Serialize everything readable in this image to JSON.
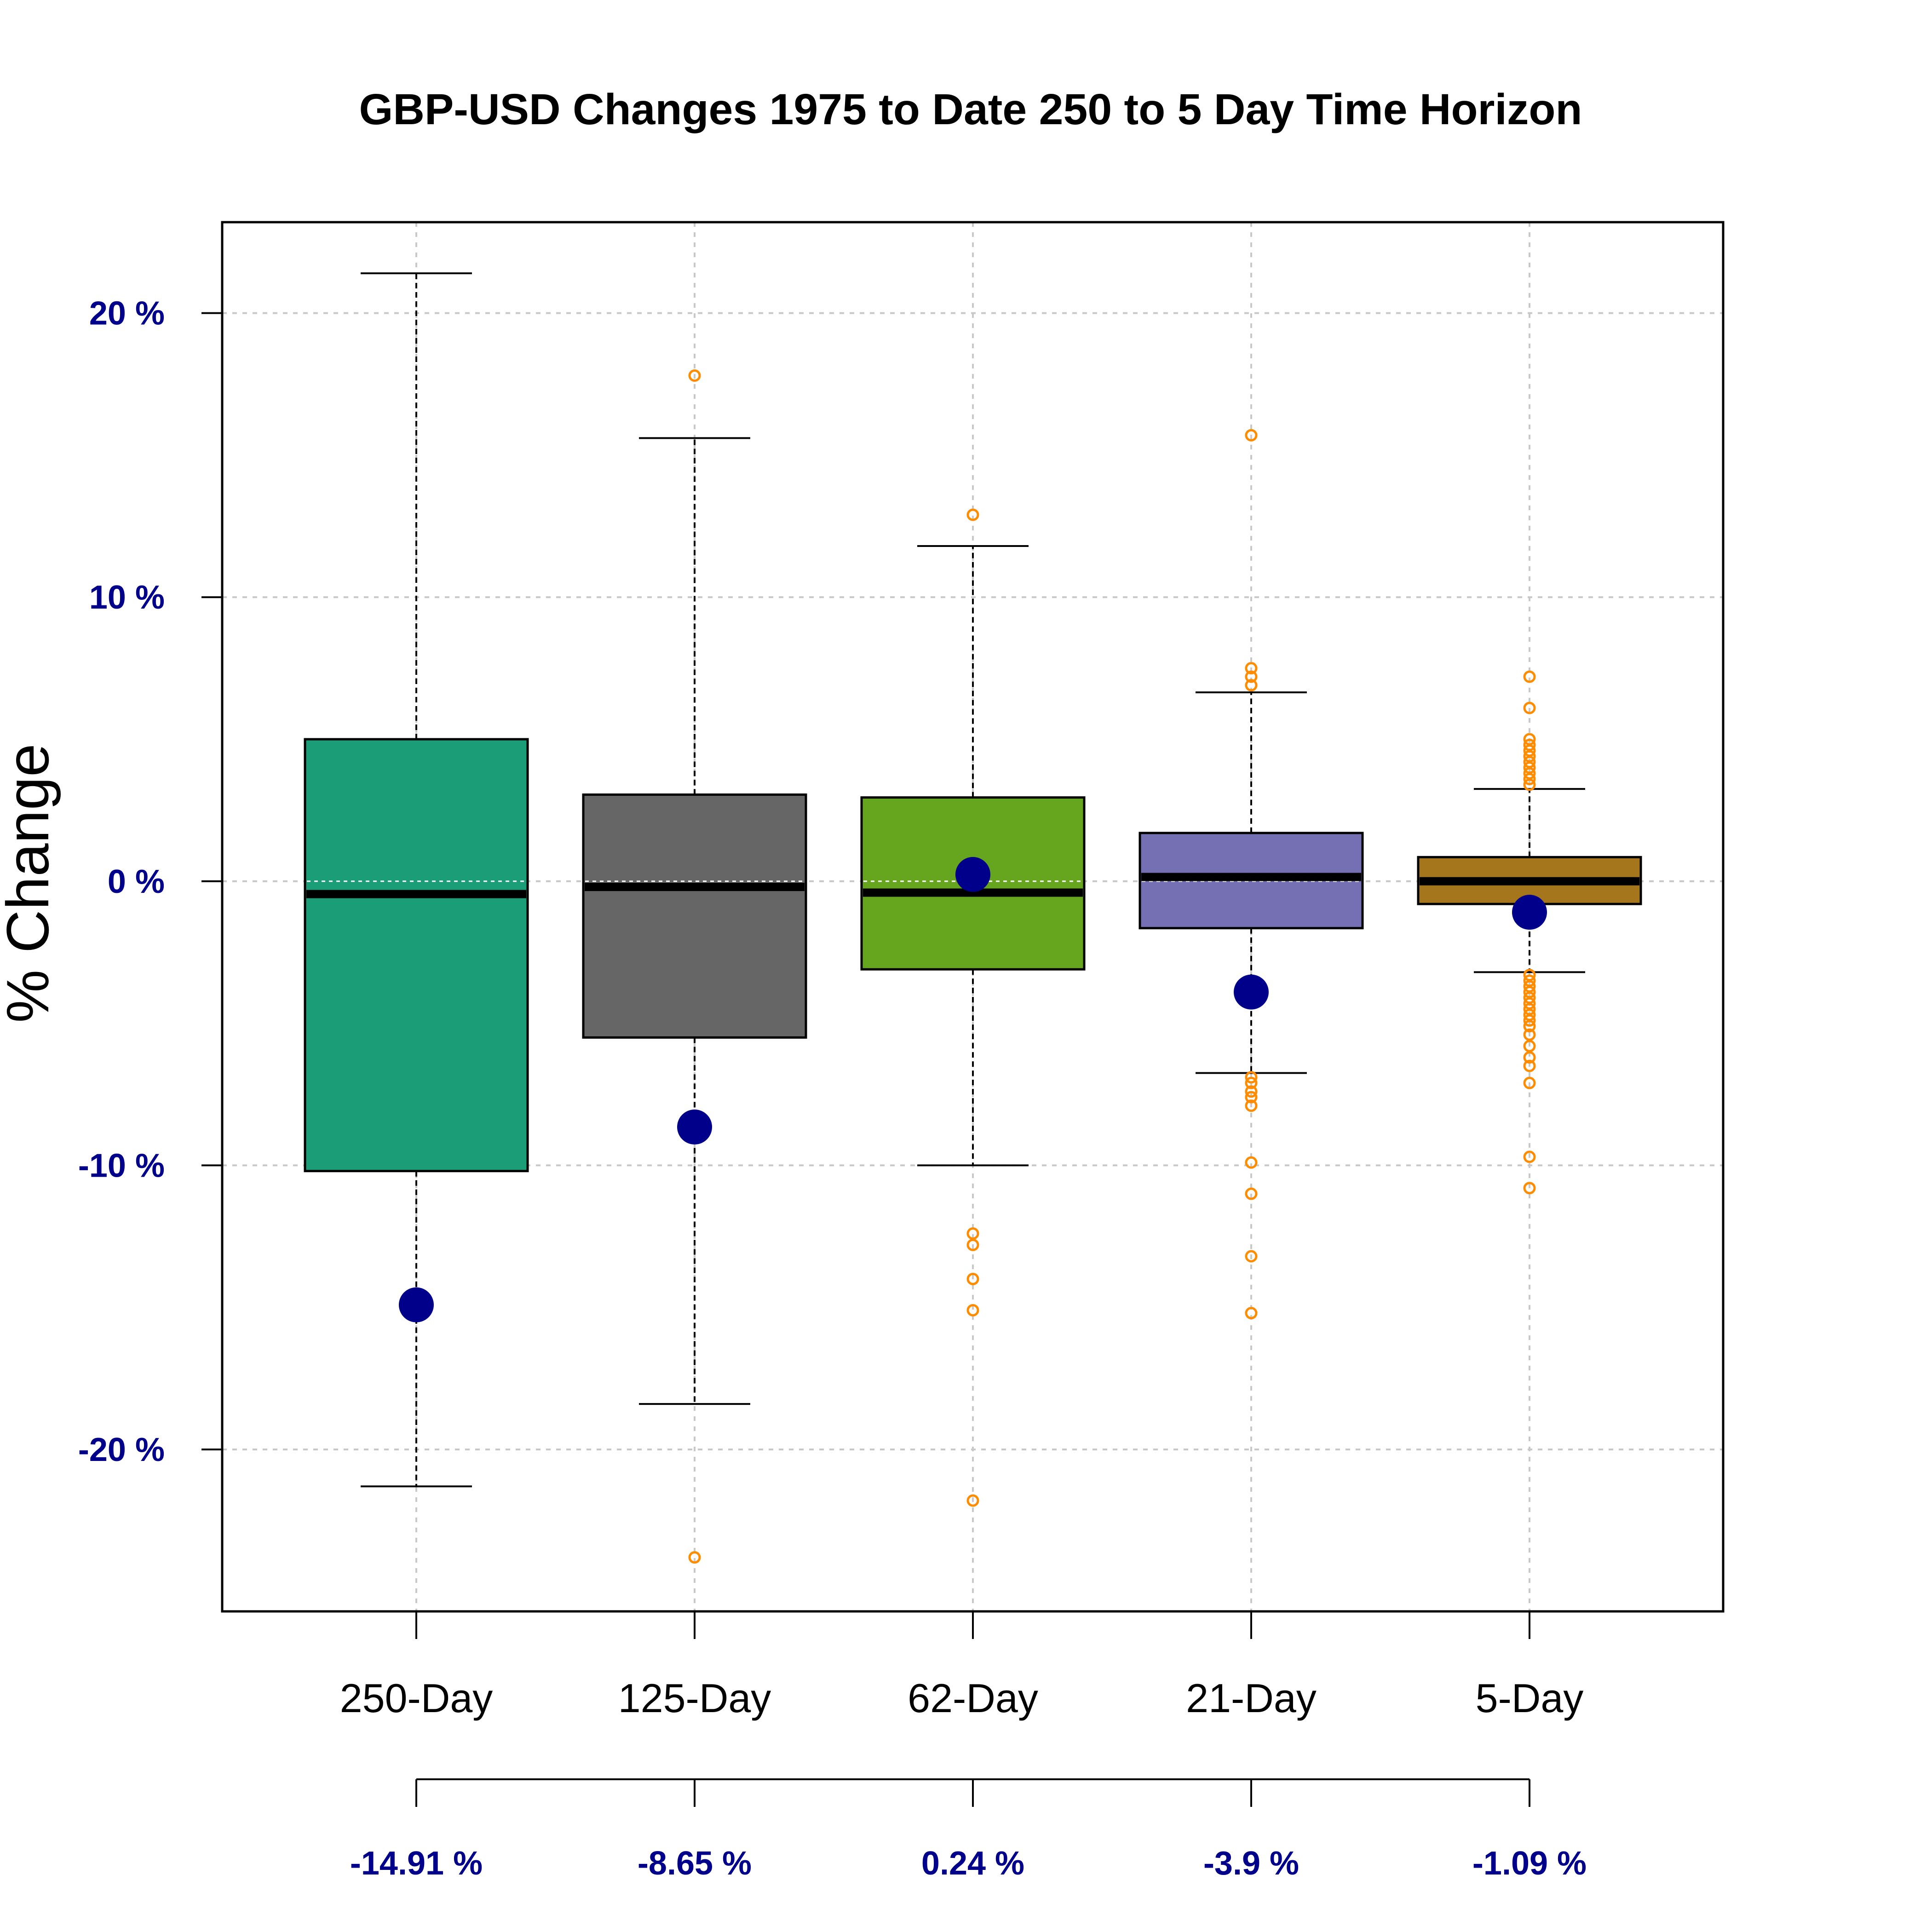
{
  "chart_data": {
    "type": "boxplot",
    "title": "GBP-USD Changes 1975 to Date 250 to 5 Day Time Horizon",
    "ylabel": "% Change",
    "xlabel": "",
    "ylim": [
      -25.7,
      23.2
    ],
    "yticks": [
      20,
      10,
      0,
      -10,
      -20
    ],
    "ytick_labels": [
      "20 %",
      "10 %",
      "0 %",
      "-10 %",
      "-20 %"
    ],
    "grid": true,
    "categories": [
      "250-Day",
      "125-Day",
      "62-Day",
      "21-Day",
      "5-Day"
    ],
    "series": [
      {
        "category": "250-Day",
        "color": "#1B9E77",
        "q1": -10.2,
        "median": -0.45,
        "q3": 5.0,
        "whisker_low": -21.3,
        "whisker_high": 21.4,
        "outliers": [],
        "latest": -14.91,
        "latest_label": "-14.91 %"
      },
      {
        "category": "125-Day",
        "color": "#666666",
        "q1": -5.5,
        "median": -0.2,
        "q3": 3.05,
        "whisker_low": -18.4,
        "whisker_high": 15.6,
        "outliers": [
          17.8,
          -23.8
        ],
        "latest": -8.65,
        "latest_label": "-8.65 %"
      },
      {
        "category": "62-Day",
        "color": "#66A61E",
        "q1": -3.1,
        "median": -0.4,
        "q3": 2.95,
        "whisker_low": -10.0,
        "whisker_high": 11.8,
        "outliers": [
          12.9,
          -12.4,
          -12.8,
          -14.0,
          -15.1,
          -21.8
        ],
        "latest": 0.24,
        "latest_label": "0.24 %"
      },
      {
        "category": "21-Day",
        "color": "#7570B3",
        "q1": -1.65,
        "median": 0.15,
        "q3": 1.7,
        "whisker_low": -6.75,
        "whisker_high": 6.65,
        "outliers": [
          15.7,
          7.5,
          7.2,
          6.9,
          -6.9,
          -7.1,
          -7.4,
          -7.6,
          -7.9,
          -9.9,
          -11.0,
          -13.2,
          -15.2
        ],
        "latest": -3.9,
        "latest_label": "-3.9 %"
      },
      {
        "category": "5-Day",
        "color": "#A6761D",
        "q1": -0.8,
        "median": 0.0,
        "q3": 0.85,
        "whisker_low": -3.2,
        "whisker_high": 3.25,
        "outliers": [
          7.2,
          6.1,
          5.0,
          4.8,
          4.6,
          4.4,
          4.2,
          4.0,
          3.8,
          3.6,
          3.4,
          -3.3,
          -3.5,
          -3.7,
          -3.9,
          -4.1,
          -4.3,
          -4.5,
          -4.7,
          -4.9,
          -5.1,
          -5.4,
          -5.8,
          -6.2,
          -6.5,
          -7.1,
          -9.7,
          -10.8
        ],
        "latest": -1.09,
        "latest_label": "-1.09 %"
      }
    ],
    "colors": {
      "axis": "#000000",
      "grid": "#C8C8C8",
      "latest_marker": "#00008B",
      "outlier": "#FF8C00",
      "ytick_label": "#00008B"
    }
  }
}
